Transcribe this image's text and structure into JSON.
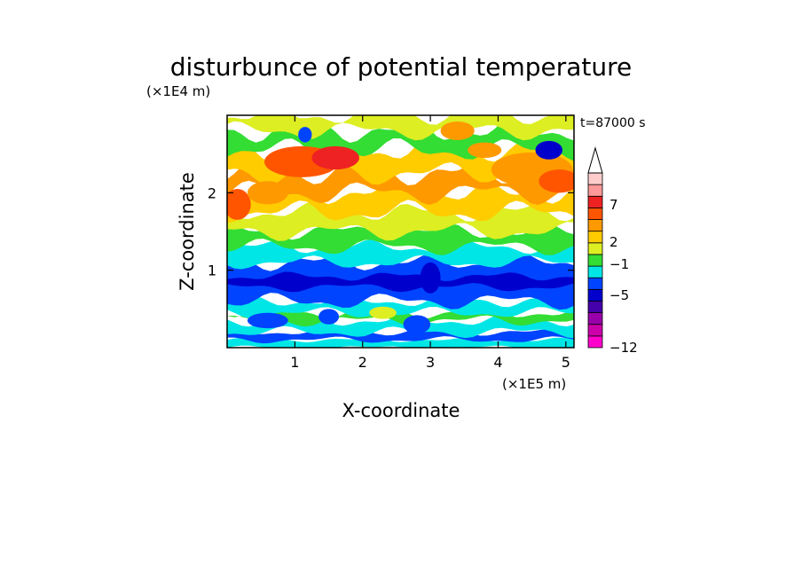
{
  "chart_data": {
    "type": "heatmap",
    "title": "disturbunce of potential temperature",
    "xlabel": "X-coordinate",
    "ylabel": "Z-coordinate",
    "x_unit": "(×1E5 m)",
    "y_unit": "(×1E4 m)",
    "time_label": "t=87000 s",
    "xlim": [
      0,
      5.12
    ],
    "ylim": [
      0,
      3.0
    ],
    "x_ticks": [
      1,
      2,
      3,
      4,
      5
    ],
    "x_tick_labels": [
      "1",
      "2",
      "3",
      "4",
      "5"
    ],
    "y_ticks": [
      1,
      2
    ],
    "y_tick_labels": [
      "1",
      "2"
    ],
    "colorbar": {
      "labels": [
        "7",
        "2",
        "−1",
        "−5",
        "−12"
      ],
      "colors": [
        "#ff00cc",
        "#cc00aa",
        "#9900aa",
        "#4400aa",
        "#0000cc",
        "#0044ff",
        "#00e6e6",
        "#33dd33",
        "#ddee22",
        "#ffcc00",
        "#ff9900",
        "#ff5500",
        "#ee2222",
        "#ff9999",
        "#ffcccc"
      ]
    },
    "bands": [
      {
        "z": [
          0.0,
          0.1
        ],
        "color": "#00e6e6",
        "amp": 0.02
      },
      {
        "z": [
          0.1,
          0.2
        ],
        "color": "#0044ff",
        "amp": 0.03
      },
      {
        "z": [
          0.2,
          0.35
        ],
        "color": "#00e6e6",
        "amp": 0.05
      },
      {
        "z": [
          0.35,
          0.45
        ],
        "color": "#33dd33",
        "amp": 0.05
      },
      {
        "z": [
          0.45,
          0.6
        ],
        "color": "#00e6e6",
        "amp": 0.05
      },
      {
        "z": [
          0.6,
          1.1
        ],
        "color": "#0044ff",
        "amp": 0.07
      },
      {
        "z": [
          0.78,
          0.92
        ],
        "color": "#0000cc",
        "amp": 0.04
      },
      {
        "z": [
          1.1,
          1.3
        ],
        "color": "#00e6e6",
        "amp": 0.06
      },
      {
        "z": [
          1.3,
          1.5
        ],
        "color": "#33dd33",
        "amp": 0.07
      },
      {
        "z": [
          1.5,
          1.75
        ],
        "color": "#ddee22",
        "amp": 0.08
      },
      {
        "z": [
          1.75,
          2.0
        ],
        "color": "#ffcc00",
        "amp": 0.1
      },
      {
        "z": [
          2.0,
          2.25
        ],
        "color": "#ff9900",
        "amp": 0.1
      },
      {
        "z": [
          2.25,
          2.55
        ],
        "color": "#ffcc00",
        "amp": 0.1
      },
      {
        "z": [
          2.55,
          2.8
        ],
        "color": "#33dd33",
        "amp": 0.1
      },
      {
        "z": [
          2.8,
          3.0
        ],
        "color": "#ddee22",
        "amp": 0.08
      }
    ],
    "blobs": [
      {
        "x": 1.1,
        "z": 2.4,
        "rx": 0.55,
        "rz": 0.2,
        "color": "#ff5500"
      },
      {
        "x": 1.6,
        "z": 2.45,
        "rx": 0.35,
        "rz": 0.15,
        "color": "#ee2222"
      },
      {
        "x": 0.15,
        "z": 1.85,
        "rx": 0.2,
        "rz": 0.2,
        "color": "#ff5500"
      },
      {
        "x": 0.6,
        "z": 2.0,
        "rx": 0.3,
        "rz": 0.15,
        "color": "#ff9900"
      },
      {
        "x": 4.5,
        "z": 2.3,
        "rx": 0.6,
        "rz": 0.22,
        "color": "#ff9900"
      },
      {
        "x": 4.9,
        "z": 2.15,
        "rx": 0.3,
        "rz": 0.15,
        "color": "#ff5500"
      },
      {
        "x": 4.75,
        "z": 2.55,
        "rx": 0.2,
        "rz": 0.12,
        "color": "#0000cc"
      },
      {
        "x": 1.15,
        "z": 2.75,
        "rx": 0.1,
        "rz": 0.1,
        "color": "#0044ff"
      },
      {
        "x": 3.4,
        "z": 2.8,
        "rx": 0.25,
        "rz": 0.12,
        "color": "#ff9900"
      },
      {
        "x": 3.8,
        "z": 2.55,
        "rx": 0.25,
        "rz": 0.1,
        "color": "#ff9900"
      },
      {
        "x": 3.0,
        "z": 0.9,
        "rx": 0.15,
        "rz": 0.2,
        "color": "#0000cc"
      },
      {
        "x": 0.6,
        "z": 0.35,
        "rx": 0.3,
        "rz": 0.1,
        "color": "#0044ff"
      },
      {
        "x": 2.8,
        "z": 0.3,
        "rx": 0.2,
        "rz": 0.12,
        "color": "#0044ff"
      },
      {
        "x": 1.5,
        "z": 0.4,
        "rx": 0.15,
        "rz": 0.1,
        "color": "#0044ff"
      },
      {
        "x": 2.3,
        "z": 0.45,
        "rx": 0.2,
        "rz": 0.08,
        "color": "#ddee22"
      }
    ]
  }
}
